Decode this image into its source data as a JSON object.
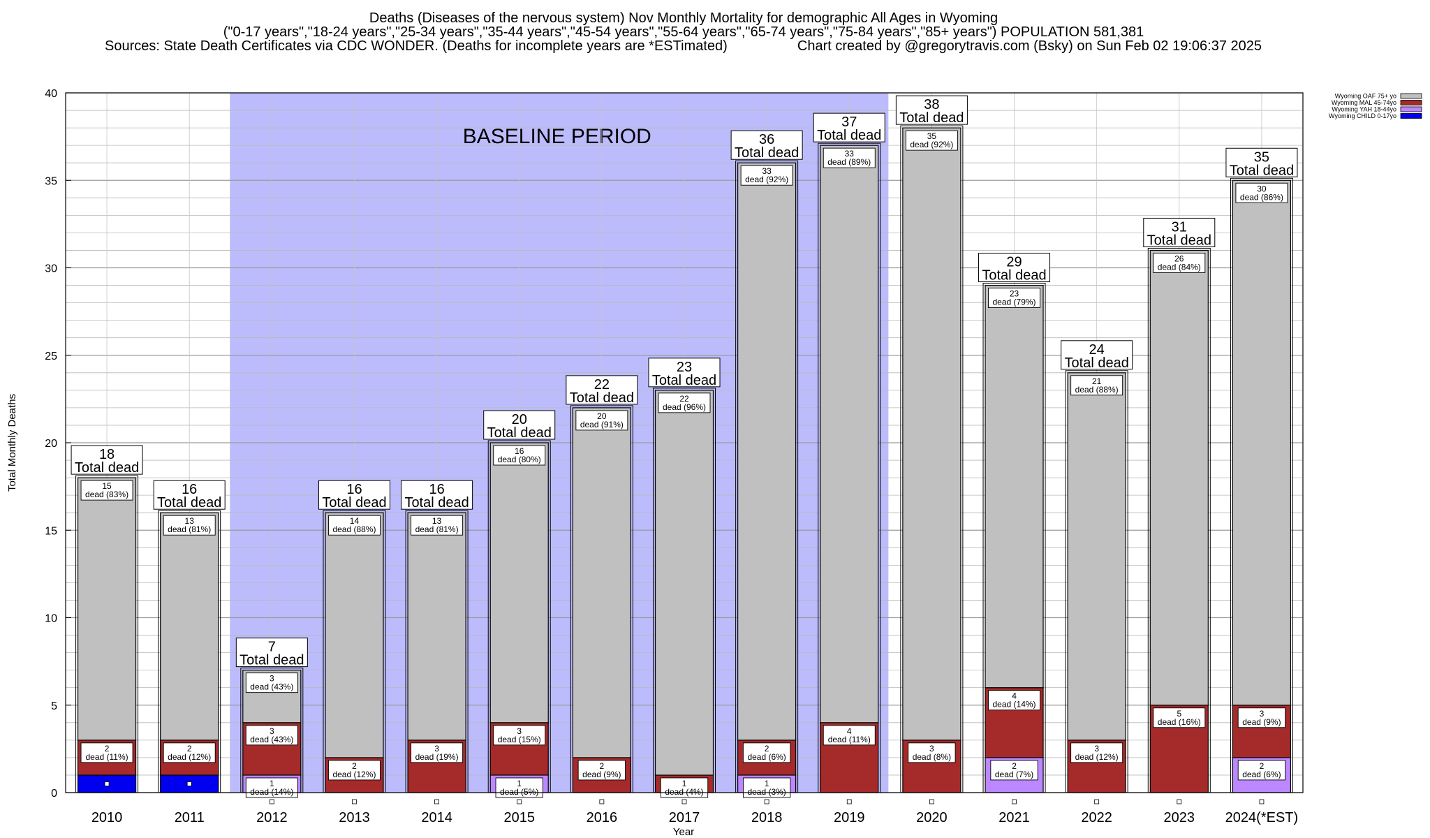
{
  "chart_data": {
    "type": "bar",
    "stacked": true,
    "title": [
      "Deaths (Diseases of the nervous system) Nov Monthly Mortality for demographic All Ages in Wyoming",
      "(\"0-17 years\",\"18-24 years\",\"25-34 years\",\"35-44 years\",\"45-54 years\",\"55-64 years\",\"65-74 years\",\"75-84 years\",\"85+ years\") POPULATION 581,381",
      "Sources: State Death Certificates via CDC WONDER. (Deaths for incomplete years are *ESTimated)",
      "Chart created by @gregorytravis.com (Bsky) on Sun Feb 02 19:06:37 2025"
    ],
    "xlabel": "Year",
    "ylabel": "Total Monthly Deaths",
    "ylim": [
      0,
      40
    ],
    "yticks": [
      "0",
      "5",
      "10",
      "15",
      "20",
      "25",
      "30",
      "35",
      "40"
    ],
    "grid": true,
    "legend_position": "top-right",
    "baseline_label": "BASELINE PERIOD",
    "baseline_range": [
      "2012",
      "2019"
    ],
    "baseline_color": "#bcbcfc",
    "total_suffix": "Total dead",
    "categories": [
      "2010",
      "2011",
      "2012",
      "2013",
      "2014",
      "2015",
      "2016",
      "2017",
      "2018",
      "2019",
      "2020",
      "2021",
      "2022",
      "2023",
      "2024(*EST)"
    ],
    "series": [
      {
        "name": "Wyoming CHILD 0-17yo",
        "color": "#0000ee",
        "values": [
          1,
          1,
          0,
          0,
          0,
          0,
          0,
          0,
          0,
          0,
          0,
          0,
          0,
          0,
          0
        ]
      },
      {
        "name": "Wyoming YAH 18-44yo",
        "color": "#bb88ff",
        "values": [
          0,
          0,
          1,
          0,
          0,
          1,
          0,
          0,
          1,
          0,
          0,
          2,
          0,
          0,
          2
        ]
      },
      {
        "name": "Wyoming MAL 45-74yo",
        "color": "#a52a2a",
        "values": [
          2,
          2,
          3,
          2,
          3,
          3,
          2,
          1,
          2,
          4,
          3,
          4,
          3,
          5,
          3
        ]
      },
      {
        "name": "Wyoming OAF 75+ yo",
        "color": "#c0c0c0",
        "values": [
          15,
          13,
          3,
          14,
          13,
          16,
          20,
          22,
          33,
          33,
          35,
          23,
          21,
          26,
          30
        ]
      }
    ],
    "segment_labels": {
      "Wyoming YAH 18-44yo": [
        "",
        "",
        "dead (14%)",
        "",
        "",
        "dead (5%)",
        "",
        "",
        "dead (3%)",
        "",
        "",
        "dead (7%)",
        "",
        "",
        "dead (6%)"
      ],
      "Wyoming MAL 45-74yo": [
        "dead (11%)",
        "dead (12%)",
        "dead (43%)",
        "dead (12%)",
        "dead (19%)",
        "dead (15%)",
        "dead (9%)",
        "dead (4%)",
        "dead (6%)",
        "dead (11%)",
        "dead (8%)",
        "dead (14%)",
        "dead (12%)",
        "dead (16%)",
        "dead (9%)"
      ],
      "Wyoming OAF 75+ yo": [
        "dead (83%)",
        "dead (81%)",
        "dead (43%)",
        "dead (88%)",
        "dead (81%)",
        "dead (80%)",
        "dead (91%)",
        "dead (96%)",
        "dead (92%)",
        "dead (89%)",
        "dead (92%)",
        "dead (79%)",
        "dead (88%)",
        "dead (84%)",
        "dead (86%)"
      ]
    },
    "totals": [
      18,
      16,
      7,
      16,
      16,
      20,
      22,
      23,
      36,
      37,
      38,
      29,
      24,
      31,
      35
    ],
    "legend_order": [
      "Wyoming OAF 75+ yo",
      "Wyoming MAL 45-74yo",
      "Wyoming YAH 18-44yo",
      "Wyoming CHILD 0-17yo"
    ]
  }
}
